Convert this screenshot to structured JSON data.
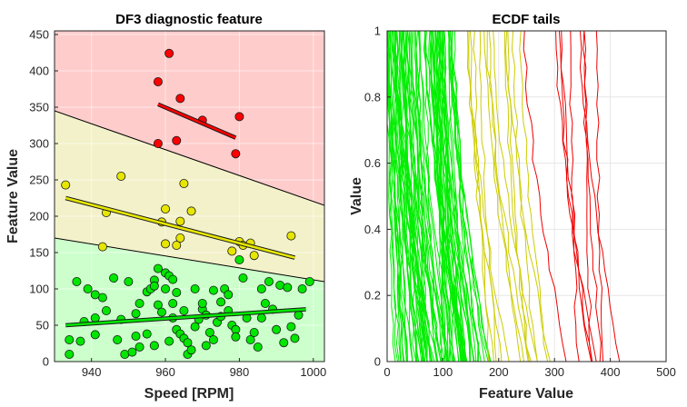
{
  "chart_data": [
    {
      "type": "scatter",
      "title": "DF3 diagnostic feature",
      "xlabel": "Speed [RPM]",
      "ylabel": "Feature Value",
      "xlim": [
        930,
        1003
      ],
      "ylim": [
        0,
        455
      ],
      "xticks": [
        940,
        960,
        980,
        1000
      ],
      "yticks": [
        0,
        50,
        100,
        150,
        200,
        250,
        300,
        350,
        400,
        450
      ],
      "grid": true,
      "zones": [
        {
          "color": "#ffcccc",
          "edge": "upper"
        },
        {
          "color": "#f3f1c9",
          "edge": "middle"
        },
        {
          "color": "#ccffcc",
          "edge": "lower"
        }
      ],
      "boundaries": [
        {
          "x": [
            930,
            1003
          ],
          "y": [
            345,
            215
          ]
        },
        {
          "x": [
            930,
            1003
          ],
          "y": [
            170,
            110
          ]
        }
      ],
      "series": [
        {
          "color": "#ff0000",
          "points": [
            [
              958,
              385
            ],
            [
              961,
              424
            ],
            [
              964,
              362
            ],
            [
              958,
              300
            ],
            [
              963,
              304
            ],
            [
              970,
              332
            ],
            [
              980,
              337
            ],
            [
              979,
              286
            ]
          ],
          "fit": {
            "x": [
              958,
              979
            ],
            "y": [
              354,
              308
            ]
          }
        },
        {
          "color": "#e6e600",
          "points": [
            [
              933,
              243
            ],
            [
              948,
              255
            ],
            [
              944,
              205
            ],
            [
              943,
              158
            ],
            [
              965,
              245
            ],
            [
              963,
              160
            ],
            [
              964,
              170
            ],
            [
              964,
              193
            ],
            [
              960,
              210
            ],
            [
              967,
              207
            ],
            [
              959,
              192
            ],
            [
              960,
              162
            ],
            [
              980,
              165
            ],
            [
              981,
              160
            ],
            [
              984,
              146
            ],
            [
              983,
              163
            ],
            [
              994,
              173
            ],
            [
              978,
              152
            ]
          ],
          "fit": {
            "x": [
              933,
              995
            ],
            "y": [
              225,
              143
            ]
          }
        },
        {
          "color": "#00e600",
          "points": [
            [
              936,
              110
            ],
            [
              939,
              100
            ],
            [
              943,
              88
            ],
            [
              941,
              92
            ],
            [
              934,
              30
            ],
            [
              934,
              10
            ],
            [
              937,
              28
            ],
            [
              941,
              37
            ],
            [
              938,
              55
            ],
            [
              941,
              60
            ],
            [
              944,
              70
            ],
            [
              947,
              30
            ],
            [
              949,
              10
            ],
            [
              950,
              110
            ],
            [
              951,
              13
            ],
            [
              946,
              115
            ],
            [
              952,
              35
            ],
            [
              953,
              20
            ],
            [
              953,
              80
            ],
            [
              955,
              96
            ],
            [
              956,
              100
            ],
            [
              957,
              112
            ],
            [
              958,
              128
            ],
            [
              957,
              104
            ],
            [
              958,
              78
            ],
            [
              960,
              122
            ],
            [
              961,
              118
            ],
            [
              959,
              68
            ],
            [
              962,
              113
            ],
            [
              963,
              95
            ],
            [
              962,
              80
            ],
            [
              962,
              60
            ],
            [
              963,
              44
            ],
            [
              964,
              38
            ],
            [
              965,
              32
            ],
            [
              966,
              26
            ],
            [
              966,
              10
            ],
            [
              967,
              16
            ],
            [
              968,
              48
            ],
            [
              969,
              58
            ],
            [
              970,
              72
            ],
            [
              970,
              80
            ],
            [
              971,
              64
            ],
            [
              972,
              40
            ],
            [
              973,
              30
            ],
            [
              974,
              54
            ],
            [
              975,
              62
            ],
            [
              975,
              82
            ],
            [
              976,
              100
            ],
            [
              977,
              70
            ],
            [
              978,
              50
            ],
            [
              979,
              44
            ],
            [
              979,
              34
            ],
            [
              980,
              140
            ],
            [
              981,
              115
            ],
            [
              982,
              60
            ],
            [
              983,
              30
            ],
            [
              984,
              40
            ],
            [
              985,
              20
            ],
            [
              986,
              100
            ],
            [
              987,
              80
            ],
            [
              988,
              110
            ],
            [
              989,
              72
            ],
            [
              990,
              44
            ],
            [
              991,
              105
            ],
            [
              992,
              26
            ],
            [
              993,
              102
            ],
            [
              994,
              48
            ],
            [
              995,
              32
            ],
            [
              996,
              64
            ],
            [
              997,
              100
            ],
            [
              999,
              110
            ],
            [
              968,
              100
            ],
            [
              955,
              38
            ],
            [
              957,
              22
            ],
            [
              948,
              58
            ],
            [
              952,
              66
            ],
            [
              960,
              100
            ],
            [
              965,
              70
            ],
            [
              971,
              22
            ],
            [
              973,
              98
            ],
            [
              977,
              92
            ],
            [
              986,
              60
            ],
            [
              961,
              28
            ]
          ],
          "fit": {
            "x": [
              933,
              998
            ],
            "y": [
              50,
              72
            ]
          }
        }
      ]
    },
    {
      "type": "line",
      "title": "ECDF tails",
      "xlabel": "Feature Value",
      "ylabel": "Value",
      "xlim": [
        0,
        500
      ],
      "ylim": [
        0,
        1
      ],
      "xticks": [
        0,
        100,
        200,
        300,
        400,
        500
      ],
      "yticks": [
        0,
        0.2,
        0.4,
        0.6,
        0.8,
        1
      ],
      "grid": true,
      "groups": [
        {
          "color": "#00ee00",
          "start_range": [
            0,
            125
          ],
          "end_range": [
            5,
            140
          ]
        },
        {
          "color": "#cccc00",
          "start_range": [
            130,
            240
          ],
          "end_range": [
            150,
            300
          ]
        },
        {
          "color": "#ee0000",
          "start_range": [
            240,
            385
          ],
          "end_range": [
            300,
            460
          ]
        }
      ]
    }
  ]
}
